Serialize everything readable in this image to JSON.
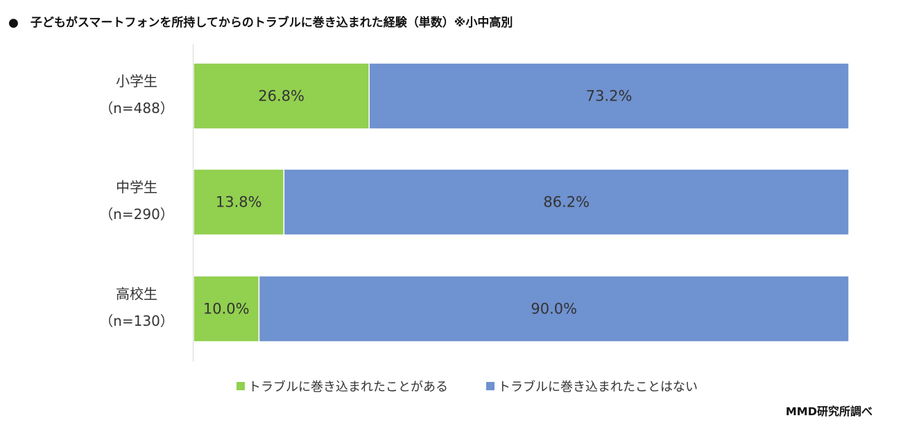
{
  "title": "●　子どもがスマートフォンを所持してからのトラブルに巻き込まれた経験（単数）※小中高別",
  "source": "MMD研究所調べ",
  "chart_data": {
    "type": "bar",
    "orientation": "horizontal",
    "stacked": true,
    "percent_stacked": true,
    "categories": [
      {
        "name": "小学生",
        "n": "（n=488）"
      },
      {
        "name": "中学生",
        "n": "（n=290）"
      },
      {
        "name": "高校生",
        "n": "（n=130）"
      }
    ],
    "series": [
      {
        "name": "トラブルに巻き込まれたことがある",
        "color": "#92d050",
        "values": [
          26.8,
          13.8,
          10.0
        ],
        "labels": [
          "26.8%",
          "13.8%",
          "10.0%"
        ]
      },
      {
        "name": "トラブルに巻き込まれたことはない",
        "color": "#6f92d0",
        "values": [
          73.2,
          86.2,
          90.0
        ],
        "labels": [
          "73.2%",
          "86.2%",
          "90.0%"
        ]
      }
    ],
    "xlim": [
      0,
      100
    ],
    "grid": false,
    "legend_position": "bottom"
  }
}
